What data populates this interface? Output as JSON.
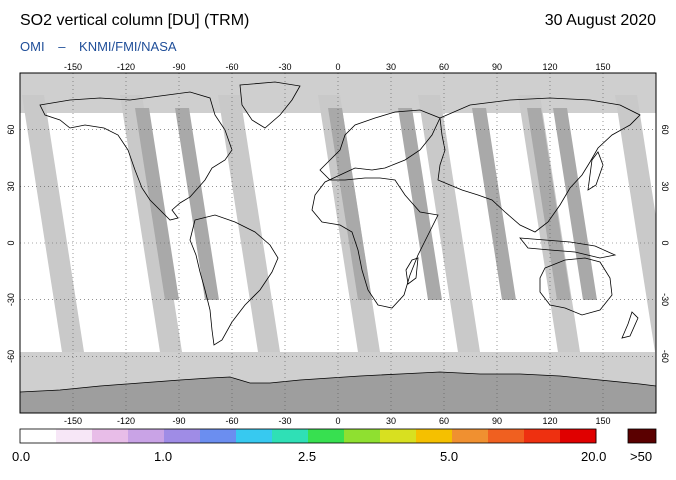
{
  "header": {
    "title": "SO2 vertical column [DU] (TRM)",
    "date": "30 August 2020",
    "credit_left": "OMI",
    "credit_sep": "–",
    "credit_right": "KNMI/FMI/NASA"
  },
  "map": {
    "lon_ticks": [
      "-150",
      "-120",
      "-90",
      "-60",
      "-30",
      "0",
      "30",
      "60",
      "90",
      "120",
      "150"
    ],
    "lat_ticks_left": [
      "60",
      "30",
      "0",
      "-30",
      "-60"
    ],
    "lat_ticks_right": [
      "60",
      "30",
      "0",
      "-30",
      "-60"
    ],
    "colors": {
      "land_gap": "#c9c9c9",
      "swath_dark": "#a9a9a9",
      "antarctica": "#9e9e9e",
      "background": "#ffffff",
      "coast": "#000000"
    }
  },
  "colorbar": {
    "labels": [
      "0.0",
      "1.0",
      "2.5",
      "5.0",
      "20.0"
    ],
    "max_label": ">50",
    "max_color": "#5a0000",
    "colors": [
      "#ffffff",
      "#f7e7f7",
      "#e8bde8",
      "#c9a3e6",
      "#9f8ce6",
      "#6b8ef0",
      "#37c9f0",
      "#2fe0b6",
      "#37e050",
      "#8fe030",
      "#d8e020",
      "#f5c000",
      "#f09030",
      "#f06020",
      "#ee3010",
      "#e00000"
    ]
  }
}
